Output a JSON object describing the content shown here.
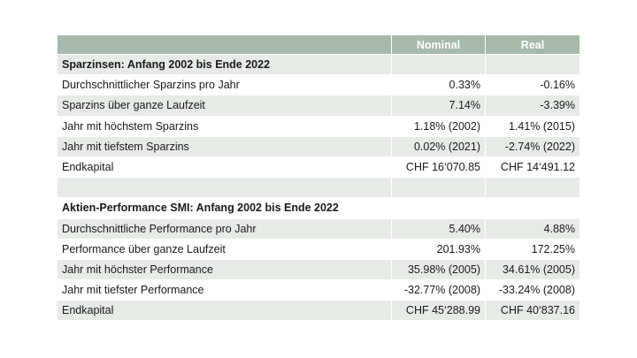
{
  "header": {
    "label_col": "",
    "nominal": "Nominal",
    "real": "Real"
  },
  "savings": {
    "title": "Sparzinsen: Anfang 2002 bis Ende 2022",
    "rows": [
      {
        "label": "Durchschnittlicher Sparzins pro Jahr",
        "nominal": "0.33%",
        "real": "-0.16%"
      },
      {
        "label": "Sparzins über ganze Laufzeit",
        "nominal": "7.14%",
        "real": "-3.39%"
      },
      {
        "label": "Jahr mit höchstem Sparzins",
        "nominal": "1.18% (2002)",
        "real": "1.41% (2015)"
      },
      {
        "label": "Jahr mit tiefstem Sparzins",
        "nominal": "0.02% (2021)",
        "real": "-2.74% (2022)"
      },
      {
        "label": "Endkapital",
        "nominal": "CHF 16‘070.85",
        "real": "CHF 14‘491.12"
      }
    ]
  },
  "stocks": {
    "title": "Aktien-Performance SMI: Anfang 2002 bis Ende 2022",
    "rows": [
      {
        "label": "Durchschnittliche Performance pro Jahr",
        "nominal": "5.40%",
        "real": "4.88%"
      },
      {
        "label": "Performance über ganze Laufzeit",
        "nominal": "201.93%",
        "real": "172.25%"
      },
      {
        "label": "Jahr mit höchster Performance",
        "nominal": "35.98% (2005)",
        "real": "34.61% (2005)"
      },
      {
        "label": "Jahr mit tiefster Performance",
        "nominal": "-32.77% (2008)",
        "real": "-33.24% (2008)"
      },
      {
        "label": "Endkapital",
        "nominal": "CHF 45‘288.99",
        "real": "CHF 40‘837.16"
      }
    ]
  },
  "colors": {
    "header_bg": "#a6b9aa",
    "header_text": "#ffffff",
    "shaded_row": "#e6ebe6",
    "plain_row": "#ffffff"
  }
}
